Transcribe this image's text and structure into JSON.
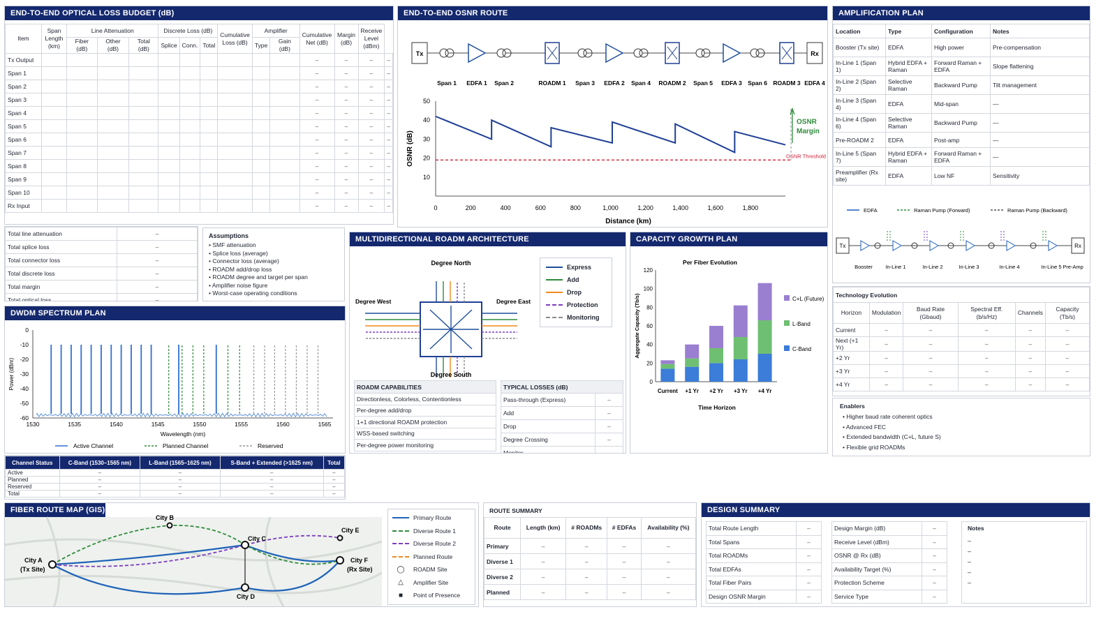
{
  "loss_budget": {
    "title": "END-TO-END OPTICAL LOSS BUDGET (dB)",
    "headers": {
      "item": "Item",
      "span_length": "Span Length (km)",
      "line_att": "Line Attenuation",
      "fiber": "Fiber (dB)",
      "other": "Other (dB)",
      "total": "Total (dB)",
      "discrete": "Discrete Loss (dB)",
      "splice": "Splice",
      "conn": "Conn.",
      "dtotal": "Total",
      "cumulative_loss": "Cumulative Loss (dB)",
      "amplifier": "Amplifier",
      "type": "Type",
      "gain": "Gain (dB)",
      "cum_net": "Cumulative Net (dB)",
      "margin": "Margin (dB)",
      "receive": "Receive Level (dBm)"
    },
    "rows": [
      "Tx Output",
      "Span 1",
      "Span 2",
      "Span 3",
      "Span 4",
      "Span 5",
      "Span 6",
      "Span 7",
      "Span 8",
      "Span 9",
      "Span 10",
      "Rx Input"
    ],
    "dash": "–",
    "totals": [
      {
        "label": "Total line attenuation",
        "value": "–"
      },
      {
        "label": "Total splice loss",
        "value": "–"
      },
      {
        "label": "Total connector loss",
        "value": "–"
      },
      {
        "label": "Total discrete loss",
        "value": "–"
      },
      {
        "label": "Total margin",
        "value": "–"
      },
      {
        "label": "Total optical loss",
        "value": "–"
      }
    ],
    "assumptions_title": "Assumptions",
    "assumptions": [
      "SMF attenuation",
      "Splice loss (average)",
      "Connector loss (average)",
      "ROADM add/drop loss",
      "ROADM degree and target per span",
      "Amplifier noise figure",
      "Worst-case operating conditions"
    ]
  },
  "osnr": {
    "title": "END-TO-END OSNR ROUTE",
    "tx": "Tx",
    "rx": "Rx",
    "route_labels": [
      "Span 1",
      "EDFA 1",
      "Span 2",
      "ROADM 1",
      "Span 3",
      "EDFA 2",
      "Span 4",
      "ROADM 2",
      "Span 5",
      "EDFA 3",
      "Span 6",
      "ROADM 3",
      "EDFA 4"
    ],
    "margin_label_1": "OSNR",
    "margin_label_2": "Margin",
    "threshold_label": "OSNR Threshold"
  },
  "amp_plan": {
    "title": "AMPLIFICATION PLAN",
    "headers": [
      "Location",
      "Type",
      "Configuration",
      "Notes"
    ],
    "rows": [
      [
        "Booster (Tx site)",
        "EDFA",
        "High power",
        "Pre-compensation"
      ],
      [
        "In-Line 1 (Span 1)",
        "Hybrid EDFA + Raman",
        "Forward Raman + EDFA",
        "Slope flattening"
      ],
      [
        "In-Line 2 (Span 2)",
        "Selective Raman",
        "Backward Pump",
        "Tilt management"
      ],
      [
        "In-Line 3 (Span 4)",
        "EDFA",
        "Mid-span",
        "—"
      ],
      [
        "In-Line 4 (Span 6)",
        "Selective Raman",
        "Backward Pump",
        "—"
      ],
      [
        "Pre-ROADM 2",
        "EDFA",
        "Post-amp",
        "—"
      ],
      [
        "In-Line 5 (Span 7)",
        "Hybrid EDFA + Raman",
        "Forward Raman + EDFA",
        "—"
      ],
      [
        "Preamplifier (Rx site)",
        "EDFA",
        "Low NF",
        "Sensitivity"
      ]
    ],
    "legend": [
      "EDFA",
      "Raman Pump (Forward)",
      "Raman Pump (Backward)"
    ],
    "chain_tx": "Tx",
    "chain_rx": "Rx",
    "chain_labels": [
      "Booster",
      "In-Line 1",
      "In-Line 2",
      "In-Line 3",
      "In-Line 4",
      "In-Line 5",
      "Pre-Amp"
    ]
  },
  "tech": {
    "title": "Technology Evolution",
    "headers": [
      "Horizon",
      "Modulation",
      "Baud Rate (Gbaud)",
      "Spectral Eff. (b/s/Hz)",
      "Channels",
      "Capacity (Tb/s)"
    ],
    "rows": [
      "Current",
      "Next (+1 Yr)",
      "+2 Yr",
      "+3 Yr",
      "+4 Yr"
    ],
    "dash": "–",
    "enablers_title": "Enablers",
    "enablers": [
      "Higher baud rate coherent optics",
      "Advanced FEC",
      "Extended bandwidth (C+L, future S)",
      "Flexible grid ROADMs"
    ]
  },
  "roadm": {
    "title": "MULTIDIRECTIONAL ROADM ARCHITECTURE",
    "north": "Degree North",
    "south": "Degree South",
    "west": "Degree West",
    "east": "Degree East",
    "legend": [
      {
        "label": "Express",
        "color": "#1f4e9c"
      },
      {
        "label": "Add",
        "color": "#2e8b3a"
      },
      {
        "label": "Drop",
        "color": "#f08a1c"
      },
      {
        "label": "Protection",
        "color": "#7d3cc0"
      },
      {
        "label": "Monitoring",
        "color": "#8c8c8c"
      }
    ],
    "cap_title": "ROADM CAPABILITIES",
    "caps": [
      "Directionless, Colorless, Contentionless",
      "Per-degree add/drop",
      "1+1 directional ROADM protection",
      "WSS-based switching",
      "Per-degree power monitoring"
    ],
    "loss_title": "TYPICAL LOSSES (dB)",
    "losses": [
      {
        "label": "Pass-through (Express)",
        "value": "–"
      },
      {
        "label": "Add",
        "value": "–"
      },
      {
        "label": "Drop",
        "value": "–"
      },
      {
        "label": "Degree Crossing",
        "value": "–"
      },
      {
        "label": "Monitor",
        "value": "–"
      }
    ]
  },
  "capacity": {
    "title": "CAPACITY GROWTH PLAN"
  },
  "dwdm": {
    "title": "DWDM SPECTRUM PLAN",
    "status_headers": [
      "Channel Status",
      "C-Band (1530–1565 nm)",
      "L-Band (1565–1625 nm)",
      "S-Band + Extended (>1625 nm)",
      "Total"
    ],
    "status_rows": [
      "Active",
      "Planned",
      "Reserved",
      "Total"
    ],
    "dash": "–"
  },
  "gis": {
    "title": "FIBER ROUTE MAP (GIS)",
    "cities": {
      "a1": "City A",
      "a2": "(Tx Site)",
      "b": "City B",
      "c": "City C",
      "d": "City D",
      "e": "City E",
      "f1": "City F",
      "f2": "(Rx Site)"
    },
    "legend": [
      "Primary Route",
      "Diverse Route 1",
      "Diverse Route 2",
      "Planned Route",
      "ROADM Site",
      "Amplifier Site",
      "Point of Presence"
    ]
  },
  "route_summary": {
    "title": "ROUTE SUMMARY",
    "headers": [
      "Route",
      "Length (km)",
      "# ROADMs",
      "# EDFAs",
      "Availability (%)"
    ],
    "rows": [
      "Primary",
      "Diverse 1",
      "Diverse 2",
      "Planned"
    ],
    "dash": "–"
  },
  "design_summary": {
    "title": "DESIGN SUMMARY",
    "left": [
      "Total Route Length",
      "Total Spans",
      "Total ROADMs",
      "Total EDFAs",
      "Total Fiber Pairs",
      "Design OSNR Margin"
    ],
    "right": [
      "Design Margin (dB)",
      "Receive Level (dBm)",
      "OSNR @ Rx (dB)",
      "Availability Target (%)",
      "Protection Scheme",
      "Service Type"
    ],
    "notes_title": "Notes",
    "dash": "–"
  },
  "chart_data": [
    {
      "type": "line",
      "ylabel": "OSNR (dB)",
      "xlabel": "Distance (km)",
      "xlim": [
        0,
        2000
      ],
      "ylim": [
        0,
        50
      ],
      "xticks": [
        0,
        200,
        400,
        600,
        800,
        1000,
        1200,
        1400,
        1600,
        1800
      ],
      "yticks": [
        10,
        20,
        30,
        40,
        50
      ],
      "series": [
        {
          "values": [
            [
              0,
              42
            ],
            [
              320,
              30
            ],
            [
              320,
              40
            ],
            [
              660,
              26
            ],
            [
              660,
              36
            ],
            [
              1010,
              28
            ],
            [
              1010,
              39
            ],
            [
              1370,
              28
            ],
            [
              1370,
              38
            ],
            [
              1710,
              23
            ],
            [
              1710,
              34
            ],
            [
              2000,
              27
            ]
          ]
        }
      ],
      "threshold": 19,
      "colors": {
        "line": "#1f3f95",
        "threshold": "#d0203a",
        "margin": "#2e8b3a"
      }
    },
    {
      "type": "bar",
      "title": "Per Fiber Evolution",
      "xlabel": "Time Horizon",
      "ylabel": "Aggregate Capacity (Tb/s)",
      "ylim": [
        0,
        120
      ],
      "yticks": [
        0,
        20,
        40,
        60,
        80,
        100,
        120
      ],
      "categories": [
        "Current",
        "+1 Yr",
        "+2 Yr",
        "+3 Yr",
        "+4 Yr"
      ],
      "series": [
        {
          "name": "C-Band",
          "color": "#3b7dd8",
          "values": [
            14,
            16,
            20,
            24,
            30
          ]
        },
        {
          "name": "L-Band",
          "color": "#6fbf73",
          "values": [
            5,
            9,
            16,
            24,
            36
          ]
        },
        {
          "name": "C+L (Future)",
          "color": "#9a7fd1",
          "values": [
            4,
            15,
            24,
            34,
            40
          ]
        }
      ]
    },
    {
      "type": "line",
      "xlabel": "Wavelength (nm)",
      "ylabel": "Power (dBm)",
      "xlim": [
        1530,
        1566
      ],
      "ylim": [
        -60,
        0
      ],
      "xticks": [
        1530,
        1535,
        1540,
        1545,
        1550,
        1555,
        1560,
        1565
      ],
      "yticks": [
        0,
        -10,
        -20,
        -30,
        -40,
        -50,
        -60
      ],
      "series": [
        {
          "name": "Active Channel",
          "color": "#2f6fd0",
          "values": [
            1532.2,
            1533.4,
            1534.6,
            1535.8,
            1537,
            1538.2,
            1539.4,
            1540.6,
            1541.8,
            1543,
            1544.2,
            1547.5,
            1552
          ]
        },
        {
          "name": "Planned Channel",
          "color": "#2e8b3a",
          "values": [
            1546.3,
            1547.9,
            1549.2,
            1550.5,
            1553.4,
            1554.8
          ]
        },
        {
          "name": "Reserved",
          "color": "#999999",
          "values": [
            1556.5,
            1557.8,
            1559,
            1560.3,
            1561.6,
            1562.9,
            1564.2
          ]
        }
      ],
      "active_level": -10,
      "noise_floor": -58
    }
  ]
}
